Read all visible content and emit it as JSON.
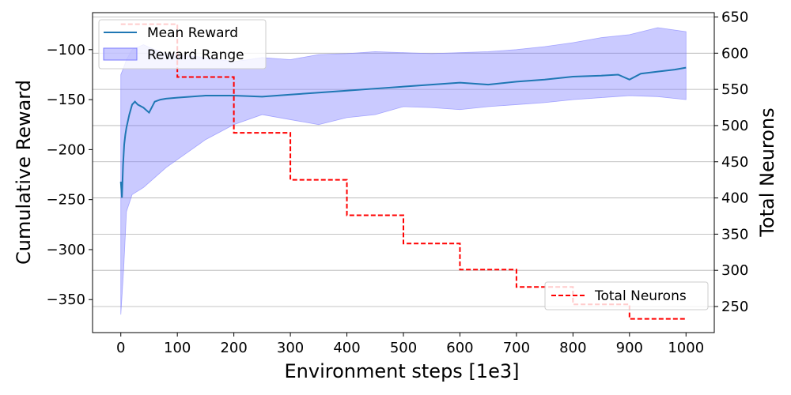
{
  "chart_data": {
    "type": "line",
    "xlabel": "Environment steps [1e3]",
    "ylabel_left": "Cumulative Reward",
    "ylabel_right": "Total Neurons",
    "xlim": [
      -50,
      1050
    ],
    "ylim_left": [
      -383,
      -63
    ],
    "ylim_right": [
      214,
      656
    ],
    "x_ticks": [
      0,
      100,
      200,
      300,
      400,
      500,
      600,
      700,
      800,
      900,
      1000
    ],
    "y_left_ticks": [
      -100,
      -150,
      -200,
      -250,
      -300,
      -350
    ],
    "y_right_ticks": [
      250,
      300,
      350,
      400,
      450,
      500,
      550,
      600,
      650
    ],
    "grid": "horizontal, right axis",
    "series": [
      {
        "name": "Mean Reward",
        "axis": "left",
        "color": "#1f77b4",
        "x": [
          0,
          2,
          4,
          6,
          8,
          10,
          15,
          20,
          25,
          30,
          40,
          50,
          60,
          70,
          80,
          100,
          150,
          200,
          250,
          300,
          350,
          400,
          450,
          500,
          550,
          600,
          650,
          700,
          750,
          800,
          850,
          880,
          900,
          920,
          950,
          980,
          1000
        ],
        "y": [
          -232,
          -248,
          -215,
          -195,
          -185,
          -178,
          -165,
          -155,
          -152,
          -155,
          -158,
          -163,
          -152,
          -150,
          -149,
          -148,
          -146,
          -146,
          -147,
          -145,
          -143,
          -141,
          -139,
          -137,
          -135,
          -133,
          -135,
          -132,
          -130,
          -127,
          -126,
          -125,
          -130,
          -124,
          -122,
          -120,
          -118
        ]
      },
      {
        "name": "Reward Range",
        "axis": "left",
        "type": "area",
        "color": "#7b7bff",
        "x": [
          0,
          5,
          10,
          20,
          40,
          60,
          80,
          100,
          150,
          200,
          250,
          300,
          350,
          400,
          450,
          500,
          550,
          600,
          650,
          700,
          750,
          800,
          850,
          900,
          950,
          1000
        ],
        "upper": [
          -125,
          -118,
          -110,
          -100,
          -95,
          -100,
          -104,
          -105,
          -108,
          -112,
          -108,
          -110,
          -105,
          -104,
          -102,
          -103,
          -104,
          -103,
          -102,
          -100,
          -97,
          -93,
          -88,
          -85,
          -78,
          -82
        ],
        "lower": [
          -365,
          -320,
          -262,
          -245,
          -238,
          -228,
          -218,
          -210,
          -190,
          -175,
          -165,
          -170,
          -175,
          -168,
          -165,
          -157,
          -158,
          -160,
          -157,
          -155,
          -153,
          -150,
          -148,
          -146,
          -147,
          -150
        ]
      },
      {
        "name": "Total Neurons",
        "axis": "right",
        "type": "step",
        "color": "#ff0000",
        "x": [
          0,
          100,
          200,
          300,
          400,
          500,
          600,
          700,
          800,
          900,
          1000
        ],
        "y": [
          640,
          567,
          490,
          425,
          376,
          337,
          301,
          277,
          253,
          233,
          233
        ]
      }
    ]
  }
}
